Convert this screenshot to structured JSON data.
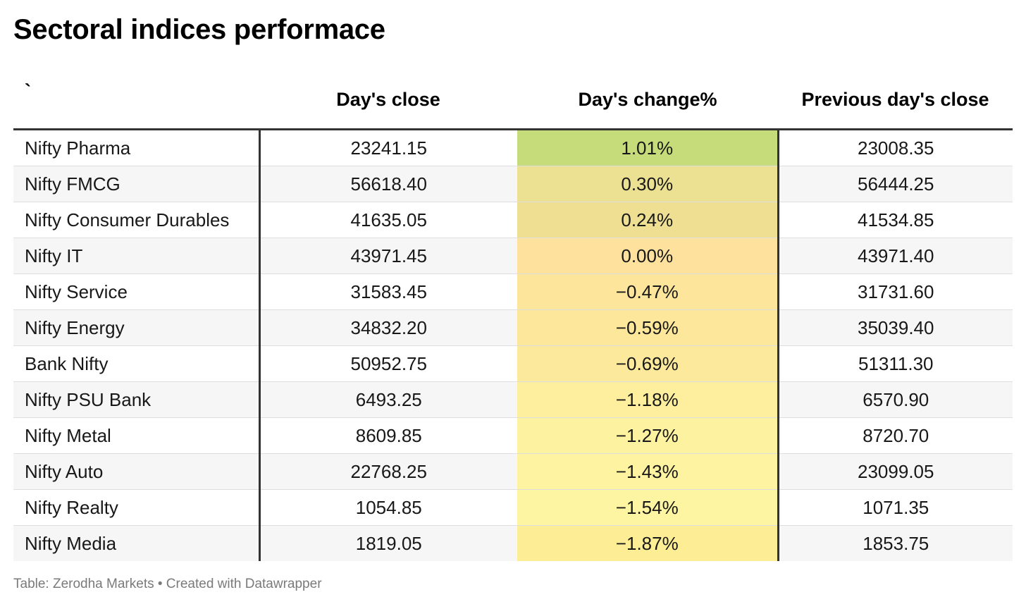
{
  "title": "Sectoral indices performace",
  "footer": "Table: Zerodha Markets • Created with Datawrapper",
  "chart_data": {
    "type": "table",
    "title": "Sectoral indices performace",
    "columns": [
      "`",
      "Day's close",
      "Day's change%",
      "Previous day's close"
    ],
    "rows": [
      {
        "name": "Nifty Pharma",
        "close": "23241.15",
        "change": "1.01%",
        "change_value": 1.01,
        "prev": "23008.35",
        "color": "#c6dc7b"
      },
      {
        "name": "Nifty FMCG",
        "close": "56618.40",
        "change": "0.30%",
        "change_value": 0.3,
        "prev": "56444.25",
        "color": "#ece092"
      },
      {
        "name": "Nifty Consumer Durables",
        "close": "41635.05",
        "change": "0.24%",
        "change_value": 0.24,
        "prev": "41534.85",
        "color": "#eedf93"
      },
      {
        "name": "Nifty IT",
        "close": "43971.45",
        "change": "0.00%",
        "change_value": 0.0,
        "prev": "43971.40",
        "color": "#fde19c"
      },
      {
        "name": "Nifty Service",
        "close": "31583.45",
        "change": "−0.47%",
        "change_value": -0.47,
        "prev": "31731.60",
        "color": "#fde69b"
      },
      {
        "name": "Nifty Energy",
        "close": "34832.20",
        "change": "−0.59%",
        "change_value": -0.59,
        "prev": "35039.40",
        "color": "#fde79b"
      },
      {
        "name": "Bank Nifty",
        "close": "50952.75",
        "change": "−0.69%",
        "change_value": -0.69,
        "prev": "51311.30",
        "color": "#fde99c"
      },
      {
        "name": "Nifty PSU Bank",
        "close": "6493.25",
        "change": "−1.18%",
        "change_value": -1.18,
        "prev": "6570.90",
        "color": "#fdef9e"
      },
      {
        "name": "Nifty Metal",
        "close": "8609.85",
        "change": "−1.27%",
        "change_value": -1.27,
        "prev": "8720.70",
        "color": "#fdf29f"
      },
      {
        "name": "Nifty Auto",
        "close": "22768.25",
        "change": "−1.43%",
        "change_value": -1.43,
        "prev": "23099.05",
        "color": "#fdf3a0"
      },
      {
        "name": "Nifty Realty",
        "close": "1054.85",
        "change": "−1.54%",
        "change_value": -1.54,
        "prev": "1071.35",
        "color": "#fdf5a2"
      },
      {
        "name": "Nifty Media",
        "close": "1819.05",
        "change": "−1.87%",
        "change_value": -1.87,
        "prev": "1853.75",
        "color": "#fdee95"
      }
    ]
  }
}
